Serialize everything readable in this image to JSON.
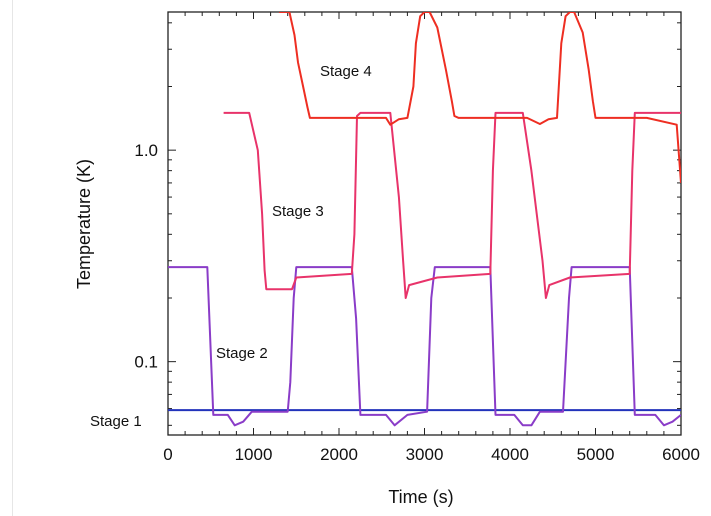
{
  "chart_data": {
    "type": "line",
    "title": "",
    "xlabel": "Time  (s)",
    "ylabel": "Temperature  (K)",
    "xlim": [
      0,
      6000
    ],
    "ylim": [
      0.045,
      4.5
    ],
    "yscale": "log",
    "grid": false,
    "x_ticks": [
      0,
      1000,
      2000,
      3000,
      4000,
      5000,
      6000
    ],
    "x_tick_labels": [
      "0",
      "1000",
      "2000",
      "3000",
      "4000",
      "5000",
      "6000"
    ],
    "y_ticks": [
      0.1,
      1.0
    ],
    "y_tick_labels": [
      "0.1",
      "1.0"
    ],
    "annotations": [
      "Stage 1",
      "Stage 2",
      "Stage 3",
      "Stage 4"
    ],
    "series": [
      {
        "color": "#2233bb",
        "points": [
          [
            0,
            0.059
          ],
          [
            600,
            0.059
          ],
          [
            1200,
            0.059
          ],
          [
            1800,
            0.059
          ],
          [
            2400,
            0.059
          ],
          [
            3000,
            0.059
          ],
          [
            3600,
            0.059
          ],
          [
            4200,
            0.059
          ],
          [
            4800,
            0.059
          ],
          [
            5400,
            0.059
          ],
          [
            6000,
            0.059
          ]
        ]
      },
      {
        "color": "#8a3cc8",
        "points": [
          [
            0,
            0.28
          ],
          [
            460,
            0.28
          ],
          [
            530,
            0.056
          ],
          [
            700,
            0.056
          ],
          [
            780,
            0.05
          ],
          [
            880,
            0.052
          ],
          [
            980,
            0.058
          ],
          [
            1400,
            0.058
          ],
          [
            1430,
            0.08
          ],
          [
            1470,
            0.2
          ],
          [
            1500,
            0.28
          ],
          [
            1850,
            0.28
          ],
          [
            2150,
            0.28
          ],
          [
            2200,
            0.16
          ],
          [
            2250,
            0.056
          ],
          [
            2550,
            0.056
          ],
          [
            2650,
            0.05
          ],
          [
            2800,
            0.056
          ],
          [
            3030,
            0.058
          ],
          [
            3080,
            0.2
          ],
          [
            3120,
            0.28
          ],
          [
            3770,
            0.28
          ],
          [
            3830,
            0.056
          ],
          [
            4050,
            0.056
          ],
          [
            4150,
            0.05
          ],
          [
            4250,
            0.05
          ],
          [
            4350,
            0.058
          ],
          [
            4620,
            0.058
          ],
          [
            4690,
            0.2
          ],
          [
            4720,
            0.28
          ],
          [
            5400,
            0.28
          ],
          [
            5460,
            0.056
          ],
          [
            5700,
            0.056
          ],
          [
            5800,
            0.05
          ],
          [
            5900,
            0.052
          ],
          [
            6000,
            0.056
          ]
        ]
      },
      {
        "color": "#e8336a",
        "points": [
          [
            650,
            1.5
          ],
          [
            950,
            1.5
          ],
          [
            1050,
            1.0
          ],
          [
            1100,
            0.5
          ],
          [
            1130,
            0.27
          ],
          [
            1150,
            0.22
          ],
          [
            1450,
            0.22
          ],
          [
            1500,
            0.25
          ],
          [
            2150,
            0.26
          ],
          [
            2180,
            0.4
          ],
          [
            2210,
            1.45
          ],
          [
            2250,
            1.5
          ],
          [
            2600,
            1.5
          ],
          [
            2700,
            0.6
          ],
          [
            2750,
            0.3
          ],
          [
            2780,
            0.2
          ],
          [
            2820,
            0.23
          ],
          [
            3150,
            0.25
          ],
          [
            3770,
            0.26
          ],
          [
            3800,
            0.8
          ],
          [
            3830,
            1.5
          ],
          [
            4150,
            1.5
          ],
          [
            4250,
            0.8
          ],
          [
            4380,
            0.3
          ],
          [
            4420,
            0.2
          ],
          [
            4460,
            0.23
          ],
          [
            4700,
            0.25
          ],
          [
            5400,
            0.26
          ],
          [
            5430,
            0.8
          ],
          [
            5460,
            1.5
          ],
          [
            6000,
            1.5
          ]
        ]
      },
      {
        "color": "#ee2e22",
        "points": [
          [
            1300,
            4.5
          ],
          [
            1420,
            4.5
          ],
          [
            1480,
            3.5
          ],
          [
            1520,
            2.6
          ],
          [
            1580,
            2.0
          ],
          [
            1630,
            1.6
          ],
          [
            1660,
            1.42
          ],
          [
            1800,
            1.42
          ],
          [
            2550,
            1.42
          ],
          [
            2600,
            1.32
          ],
          [
            2700,
            1.4
          ],
          [
            2800,
            1.42
          ],
          [
            2870,
            2.0
          ],
          [
            2900,
            3.2
          ],
          [
            2950,
            4.3
          ],
          [
            3000,
            4.5
          ],
          [
            3060,
            4.5
          ],
          [
            3150,
            3.8
          ],
          [
            3250,
            2.4
          ],
          [
            3320,
            1.7
          ],
          [
            3350,
            1.45
          ],
          [
            3400,
            1.42
          ],
          [
            4200,
            1.42
          ],
          [
            4350,
            1.33
          ],
          [
            4450,
            1.4
          ],
          [
            4550,
            1.42
          ],
          [
            4600,
            3.2
          ],
          [
            4650,
            4.3
          ],
          [
            4700,
            4.5
          ],
          [
            4750,
            4.5
          ],
          [
            4850,
            3.6
          ],
          [
            4920,
            2.4
          ],
          [
            4970,
            1.7
          ],
          [
            5000,
            1.42
          ],
          [
            5600,
            1.42
          ],
          [
            5950,
            1.32
          ],
          [
            6000,
            0.7
          ]
        ]
      }
    ]
  }
}
